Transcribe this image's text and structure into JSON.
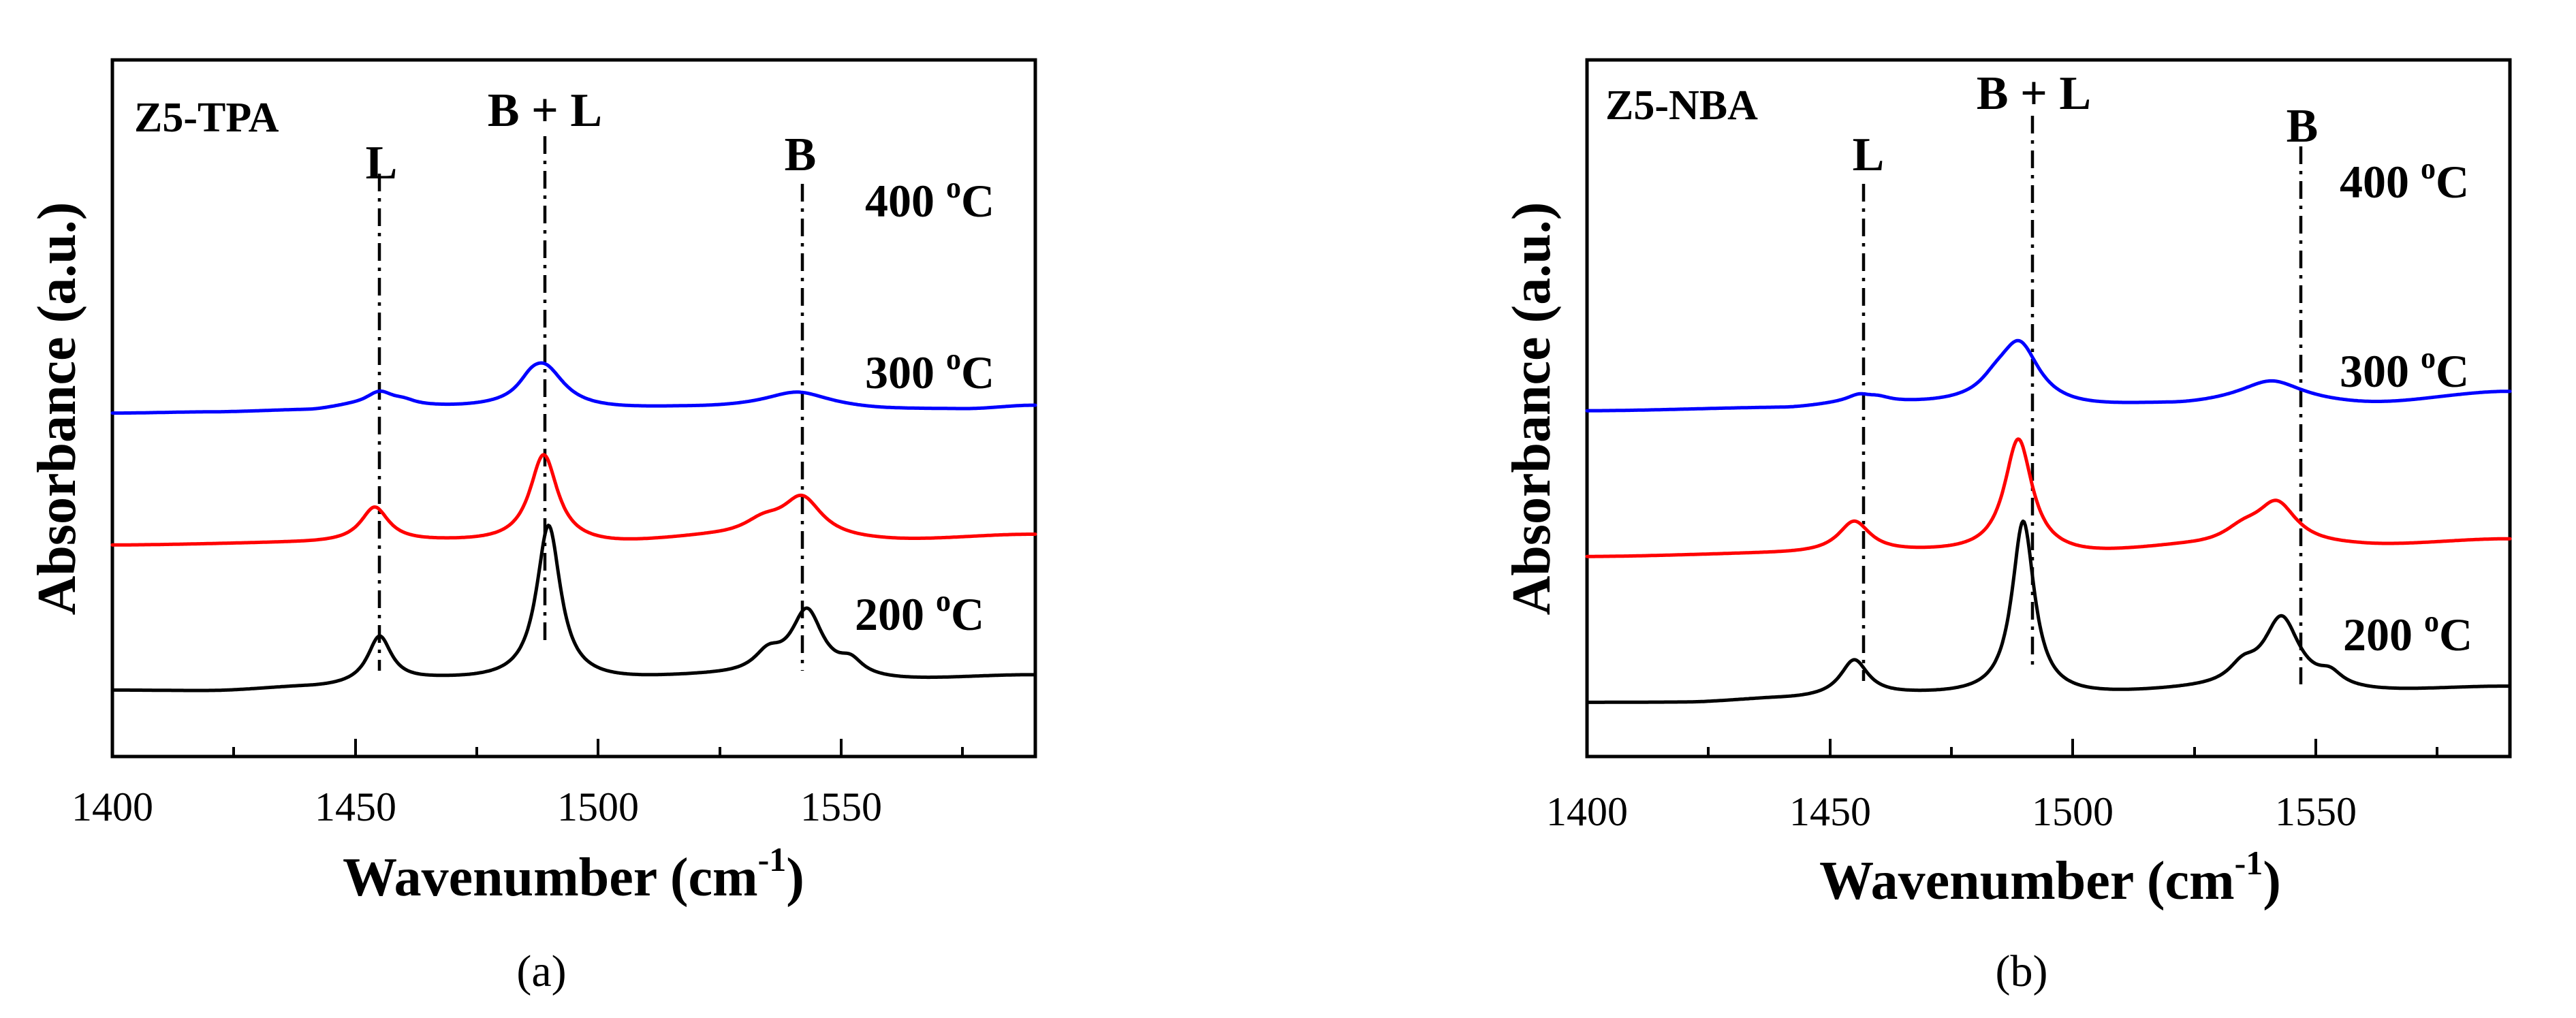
{
  "chart_data": [
    {
      "type": "line",
      "panel_caption": "(a)",
      "sample_label": "Z5-TPA",
      "xlabel": "Wavenumber (cm",
      "xlabel_sup": "-1",
      "xlabel_close": ")",
      "ylabel": "Absorbance (a.u.)",
      "xlim": [
        1400,
        1590
      ],
      "x_ticks": [
        1400,
        1450,
        1500,
        1550
      ],
      "y_ticks_shown": false,
      "peak_markers": [
        {
          "label": "L",
          "x": 1455
        },
        {
          "label": "B + L",
          "x": 1489
        },
        {
          "label": "B",
          "x": 1542
        }
      ],
      "series": [
        {
          "name": "400 °C",
          "temp_text": "400 ",
          "color": "#0000ff",
          "offset": 8.0,
          "baseline": [
            [
              1400,
              0.0
            ],
            [
              1420,
              0.03
            ],
            [
              1440,
              0.08
            ],
            [
              1450,
              0.18
            ],
            [
              1475,
              0.14
            ],
            [
              1500,
              0.1
            ],
            [
              1520,
              0.14
            ],
            [
              1540,
              0.18
            ],
            [
              1560,
              0.1
            ],
            [
              1575,
              0.11
            ],
            [
              1590,
              0.22
            ]
          ],
          "peaks": [
            [
              1455,
              0.4,
              3.5
            ],
            [
              1460,
              0.12,
              3
            ],
            [
              1489,
              1.15,
              5
            ],
            [
              1486,
              0.3,
              3
            ],
            [
              1541,
              0.42,
              8
            ]
          ]
        },
        {
          "name": "300 °C",
          "temp_text": "300 ",
          "color": "#ff0000",
          "offset": 4.2,
          "baseline": [
            [
              1400,
              0.0
            ],
            [
              1440,
              0.06
            ],
            [
              1465,
              0.08
            ],
            [
              1500,
              0.02
            ],
            [
              1525,
              0.2
            ],
            [
              1560,
              0.12
            ],
            [
              1590,
              0.3
            ]
          ],
          "peaks": [
            [
              1454,
              1.0,
              3.5
            ],
            [
              1488.8,
              2.55,
              3.5
            ],
            [
              1542,
              1.15,
              5
            ],
            [
              1534,
              0.4,
              5
            ]
          ]
        },
        {
          "name": "200 °C",
          "temp_text": "200 ",
          "color": "#000000",
          "offset": 0.0,
          "baseline": [
            [
              1400,
              0.02
            ],
            [
              1420,
              0.0
            ],
            [
              1440,
              0.1
            ],
            [
              1470,
              0.3
            ],
            [
              1500,
              0.3
            ],
            [
              1525,
              0.4
            ],
            [
              1560,
              0.3
            ],
            [
              1590,
              0.45
            ]
          ],
          "peaks": [
            [
              1455,
              1.35,
              3
            ],
            [
              1489.8,
              4.45,
              3
            ],
            [
              1543,
              1.9,
              4
            ],
            [
              1535,
              0.55,
              3.5
            ],
            [
              1552,
              0.4,
              3
            ]
          ]
        }
      ]
    },
    {
      "type": "line",
      "panel_caption": "(b)",
      "sample_label": "Z5-NBA",
      "xlabel": "Wavenumber (cm",
      "xlabel_sup": "-1",
      "xlabel_close": ")",
      "ylabel": "Absorbance (a.u.)",
      "xlim": [
        1400,
        1590
      ],
      "x_ticks": [
        1400,
        1450,
        1500,
        1550
      ],
      "y_ticks_shown": false,
      "peak_markers": [
        {
          "label": "L",
          "x": 1455
        },
        {
          "label": "B + L",
          "x": 1489
        },
        {
          "label": "B",
          "x": 1542
        }
      ],
      "series": [
        {
          "name": "400 °C",
          "temp_text": "400 ",
          "color": "#0000ff",
          "offset": 8.4,
          "baseline": [
            [
              1400,
              0.0
            ],
            [
              1440,
              0.08
            ],
            [
              1455,
              0.2
            ],
            [
              1475,
              0.18
            ],
            [
              1500,
              0.08
            ],
            [
              1520,
              0.15
            ],
            [
              1540,
              0.3
            ],
            [
              1560,
              0.2
            ],
            [
              1590,
              0.55
            ]
          ],
          "peaks": [
            [
              1456,
              0.2,
              3
            ],
            [
              1460,
              0.12,
              3
            ],
            [
              1489,
              1.75,
              5
            ],
            [
              1484,
              0.35,
              4
            ],
            [
              1541,
              0.55,
              7.5
            ]
          ]
        },
        {
          "name": "300 °C",
          "temp_text": "300 ",
          "color": "#ff0000",
          "offset": 4.2,
          "baseline": [
            [
              1400,
              0.0
            ],
            [
              1440,
              0.08
            ],
            [
              1470,
              0.1
            ],
            [
              1500,
              0.05
            ],
            [
              1525,
              0.25
            ],
            [
              1560,
              0.3
            ],
            [
              1590,
              0.5
            ]
          ],
          "peaks": [
            [
              1455,
              0.9,
              4
            ],
            [
              1488.8,
              3.3,
              3.5
            ],
            [
              1542,
              1.2,
              5
            ],
            [
              1535,
              0.4,
              5
            ]
          ]
        },
        {
          "name": "200 °C",
          "temp_text": "200 ",
          "color": "#000000",
          "offset": 0.0,
          "baseline": [
            [
              1400,
              0.0
            ],
            [
              1420,
              0.0
            ],
            [
              1440,
              0.1
            ],
            [
              1470,
              0.2
            ],
            [
              1500,
              0.2
            ],
            [
              1530,
              0.35
            ],
            [
              1560,
              0.3
            ],
            [
              1590,
              0.45
            ]
          ],
          "peaks": [
            [
              1455,
              1.05,
              3.5
            ],
            [
              1489.8,
              5.0,
              2.8
            ],
            [
              1543,
              2.05,
              4.5
            ],
            [
              1535,
              0.5,
              3.5
            ],
            [
              1553,
              0.35,
              3
            ]
          ]
        }
      ]
    }
  ]
}
